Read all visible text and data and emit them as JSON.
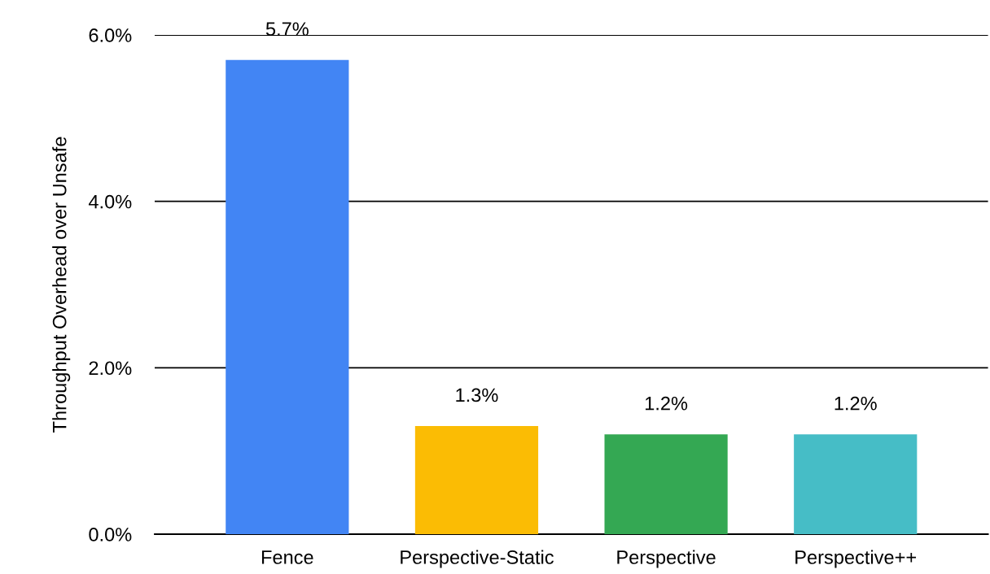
{
  "chart_data": {
    "type": "bar",
    "ylabel": "Throughput Overhead over Unsafe",
    "categories": [
      "Fence",
      "Perspective-Static",
      "Perspective",
      "Perspective++"
    ],
    "values": [
      5.7,
      1.3,
      1.2,
      1.2
    ],
    "colors": [
      "#4285f4",
      "#fbbc04",
      "#34a853",
      "#46bdc6"
    ],
    "value_labels": [
      "5.7%",
      "1.3%",
      "1.2%",
      "1.2%"
    ],
    "ylim": [
      0,
      6
    ],
    "yticks": [
      {
        "value": 0,
        "label": "0.0%"
      },
      {
        "value": 2,
        "label": "2.0%"
      },
      {
        "value": 4,
        "label": "4.0%"
      },
      {
        "value": 6,
        "label": "6.0%"
      }
    ],
    "grid": "y",
    "legend": false
  }
}
